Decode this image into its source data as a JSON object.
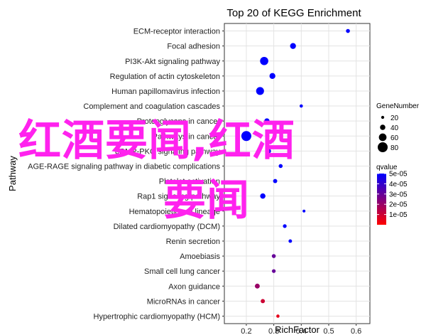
{
  "chart_data": {
    "type": "scatter",
    "title": "Top 20 of KEGG Enrichment",
    "xlabel": "RichFactor",
    "ylabel": "Pathway",
    "xlim": [
      0.12,
      0.65
    ],
    "xticks": [
      0.2,
      0.3,
      0.4,
      0.5,
      0.6
    ],
    "xtick_labels": [
      "0.2",
      "0.3",
      "0.4",
      "0.5",
      "0.6"
    ],
    "grid": true,
    "pathways": [
      "ECM-receptor interaction",
      "Focal adhesion",
      "PI3K-Akt signaling pathway",
      "Regulation of actin cytoskeleton",
      "Human papillomavirus infection",
      "Complement and coagulation cascades",
      "Proteoglycans in cancer",
      "Pathways in cancer",
      "cGMP-PKG signaling pathway",
      "AGE-RAGE signaling pathway in diabetic complications",
      "Platelet activation",
      "Rap1 signaling pathway",
      "Hematopoietic cell lineage",
      "Dilated cardiomyopathy (DCM)",
      "Renin secretion",
      "Amoebiasis",
      "Small cell lung cancer",
      "Axon guidance",
      "MicroRNAs in cancer",
      "Hypertrophic cardiomyopathy (HCM)"
    ],
    "points": [
      {
        "pathway": "ECM-receptor interaction",
        "x": 0.57,
        "gene_number": 28,
        "qvalue": 5e-05
      },
      {
        "pathway": "Focal adhesion",
        "x": 0.37,
        "gene_number": 45,
        "qvalue": 5e-05
      },
      {
        "pathway": "PI3K-Akt signaling pathway",
        "x": 0.265,
        "gene_number": 65,
        "qvalue": 5e-05
      },
      {
        "pathway": "Regulation of actin cytoskeleton",
        "x": 0.295,
        "gene_number": 45,
        "qvalue": 5e-05
      },
      {
        "pathway": "Human papillomavirus infection",
        "x": 0.25,
        "gene_number": 62,
        "qvalue": 5e-05
      },
      {
        "pathway": "Complement and coagulation cascades",
        "x": 0.4,
        "gene_number": 22,
        "qvalue": 5e-05
      },
      {
        "pathway": "Proteoglycans in cancer",
        "x": 0.275,
        "gene_number": 40,
        "qvalue": 5e-05
      },
      {
        "pathway": "Pathways in cancer",
        "x": 0.2,
        "gene_number": 80,
        "qvalue": 5e-05
      },
      {
        "pathway": "cGMP-PKG signaling pathway",
        "x": 0.28,
        "gene_number": 40,
        "qvalue": 5e-05
      },
      {
        "pathway": "AGE-RAGE signaling pathway in diabetic complications",
        "x": 0.325,
        "gene_number": 28,
        "qvalue": 5e-05
      },
      {
        "pathway": "Platelet activation",
        "x": 0.305,
        "gene_number": 30,
        "qvalue": 5e-05
      },
      {
        "pathway": "Rap1 signaling pathway",
        "x": 0.26,
        "gene_number": 40,
        "qvalue": 5e-05
      },
      {
        "pathway": "Hematopoietic cell lineage",
        "x": 0.41,
        "gene_number": 18,
        "qvalue": 5e-05
      },
      {
        "pathway": "Dilated cardiomyopathy (DCM)",
        "x": 0.34,
        "gene_number": 26,
        "qvalue": 5e-05
      },
      {
        "pathway": "Renin secretion",
        "x": 0.36,
        "gene_number": 24,
        "qvalue": 5e-05
      },
      {
        "pathway": "Amoebiasis",
        "x": 0.3,
        "gene_number": 28,
        "qvalue": 3e-05
      },
      {
        "pathway": "Small cell lung cancer",
        "x": 0.3,
        "gene_number": 26,
        "qvalue": 3e-05
      },
      {
        "pathway": "Axon guidance",
        "x": 0.24,
        "gene_number": 36,
        "qvalue": 2e-05
      },
      {
        "pathway": "MicroRNAs in cancer",
        "x": 0.26,
        "gene_number": 30,
        "qvalue": 1e-05
      },
      {
        "pathway": "Hypertrophic cardiomyopathy (HCM)",
        "x": 0.315,
        "gene_number": 22,
        "qvalue": 5e-06
      }
    ],
    "size_legend": {
      "title": "GeneNumber",
      "values": [
        20,
        40,
        60,
        80
      ],
      "labels": [
        "20",
        "40",
        "60",
        "80"
      ]
    },
    "color_legend": {
      "title": "qvalue",
      "range": [
        0.0,
        5e-05
      ],
      "ticks": [
        5e-05,
        4e-05,
        3e-05,
        2e-05,
        1e-05
      ],
      "tick_labels": [
        "5e-05",
        "4e-05",
        "3e-05",
        "2e-05",
        "1e-05"
      ],
      "high_color": "#0000ff",
      "low_color": "#ff0000"
    },
    "legend_position": "right",
    "watermark": [
      "红酒要闻,红酒",
      "要闻"
    ]
  }
}
